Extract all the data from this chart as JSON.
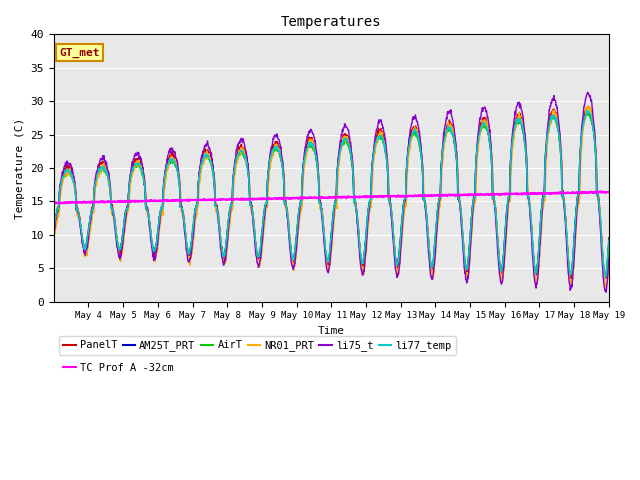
{
  "title": "Temperatures",
  "xlabel": "Time",
  "ylabel": "Temperature (C)",
  "ylim": [
    0,
    40
  ],
  "yticks": [
    0,
    5,
    10,
    15,
    20,
    25,
    30,
    35,
    40
  ],
  "annotation": "GT_met",
  "bg_color": "#e8e8e8",
  "series": [
    {
      "label": "PanelT",
      "color": "#cc0000",
      "lw": 1.0
    },
    {
      "label": "AM25T_PRT",
      "color": "#0000cc",
      "lw": 1.0
    },
    {
      "label": "AirT",
      "color": "#00cc00",
      "lw": 1.0
    },
    {
      "label": "NR01_PRT",
      "color": "#ffaa00",
      "lw": 1.0
    },
    {
      "label": "li75_t",
      "color": "#8800cc",
      "lw": 1.0
    },
    {
      "label": "li77_temp",
      "color": "#00cccc",
      "lw": 1.0
    },
    {
      "label": "TC Prof A -32cm",
      "color": "#ff00ff",
      "lw": 1.5
    }
  ],
  "xlim": [
    3,
    19
  ],
  "xtick_days": [
    4,
    5,
    6,
    7,
    8,
    9,
    10,
    11,
    12,
    13,
    14,
    15,
    16,
    17,
    18,
    19
  ],
  "xtick_labels": [
    "May 4",
    "May 5",
    "May 6",
    "May 7",
    "May 8",
    "May 9",
    "May 10",
    "May 11",
    "May 12",
    "May 13",
    "May 14",
    "May 15",
    "May 16",
    "May 17",
    "May 18",
    "May 19"
  ]
}
